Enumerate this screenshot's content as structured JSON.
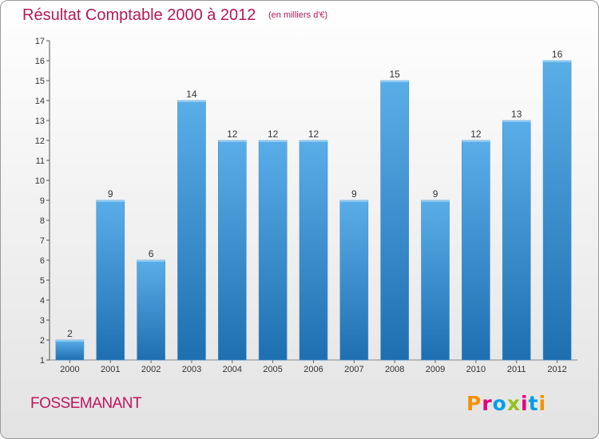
{
  "header": {
    "title": "Résultat Comptable 2000 à 2012",
    "subtitle": "(en milliers d'€)"
  },
  "footer": {
    "commune": "FOSSEMANANT",
    "logo_text": "Proxiti",
    "logo_letters": [
      "P",
      "r",
      "o",
      "x",
      "i",
      "t",
      "i"
    ],
    "logo_colors": [
      "#f39200",
      "#e2007a",
      "#009fe3",
      "#95c11f",
      "#e2007a",
      "#009fe3",
      "#f39200"
    ]
  },
  "colors": {
    "bar_top": "#5aaee8",
    "bar_bottom": "#1e6fb0",
    "title": "#b3195a"
  },
  "chart_data": {
    "type": "bar",
    "title": "Résultat Comptable 2000 à 2012",
    "ylabel": "en milliers d'€",
    "xlabel": "",
    "categories": [
      "2000",
      "2001",
      "2002",
      "2003",
      "2004",
      "2005",
      "2006",
      "2007",
      "2008",
      "2009",
      "2010",
      "2011",
      "2012"
    ],
    "values": [
      2,
      9,
      6,
      14,
      12,
      12,
      12,
      9,
      15,
      9,
      12,
      13,
      16
    ],
    "ylim": [
      1,
      17
    ],
    "yticks": [
      1,
      2,
      3,
      4,
      5,
      6,
      7,
      8,
      9,
      10,
      11,
      12,
      13,
      14,
      15,
      16,
      17
    ],
    "grid": false,
    "legend": "none"
  }
}
